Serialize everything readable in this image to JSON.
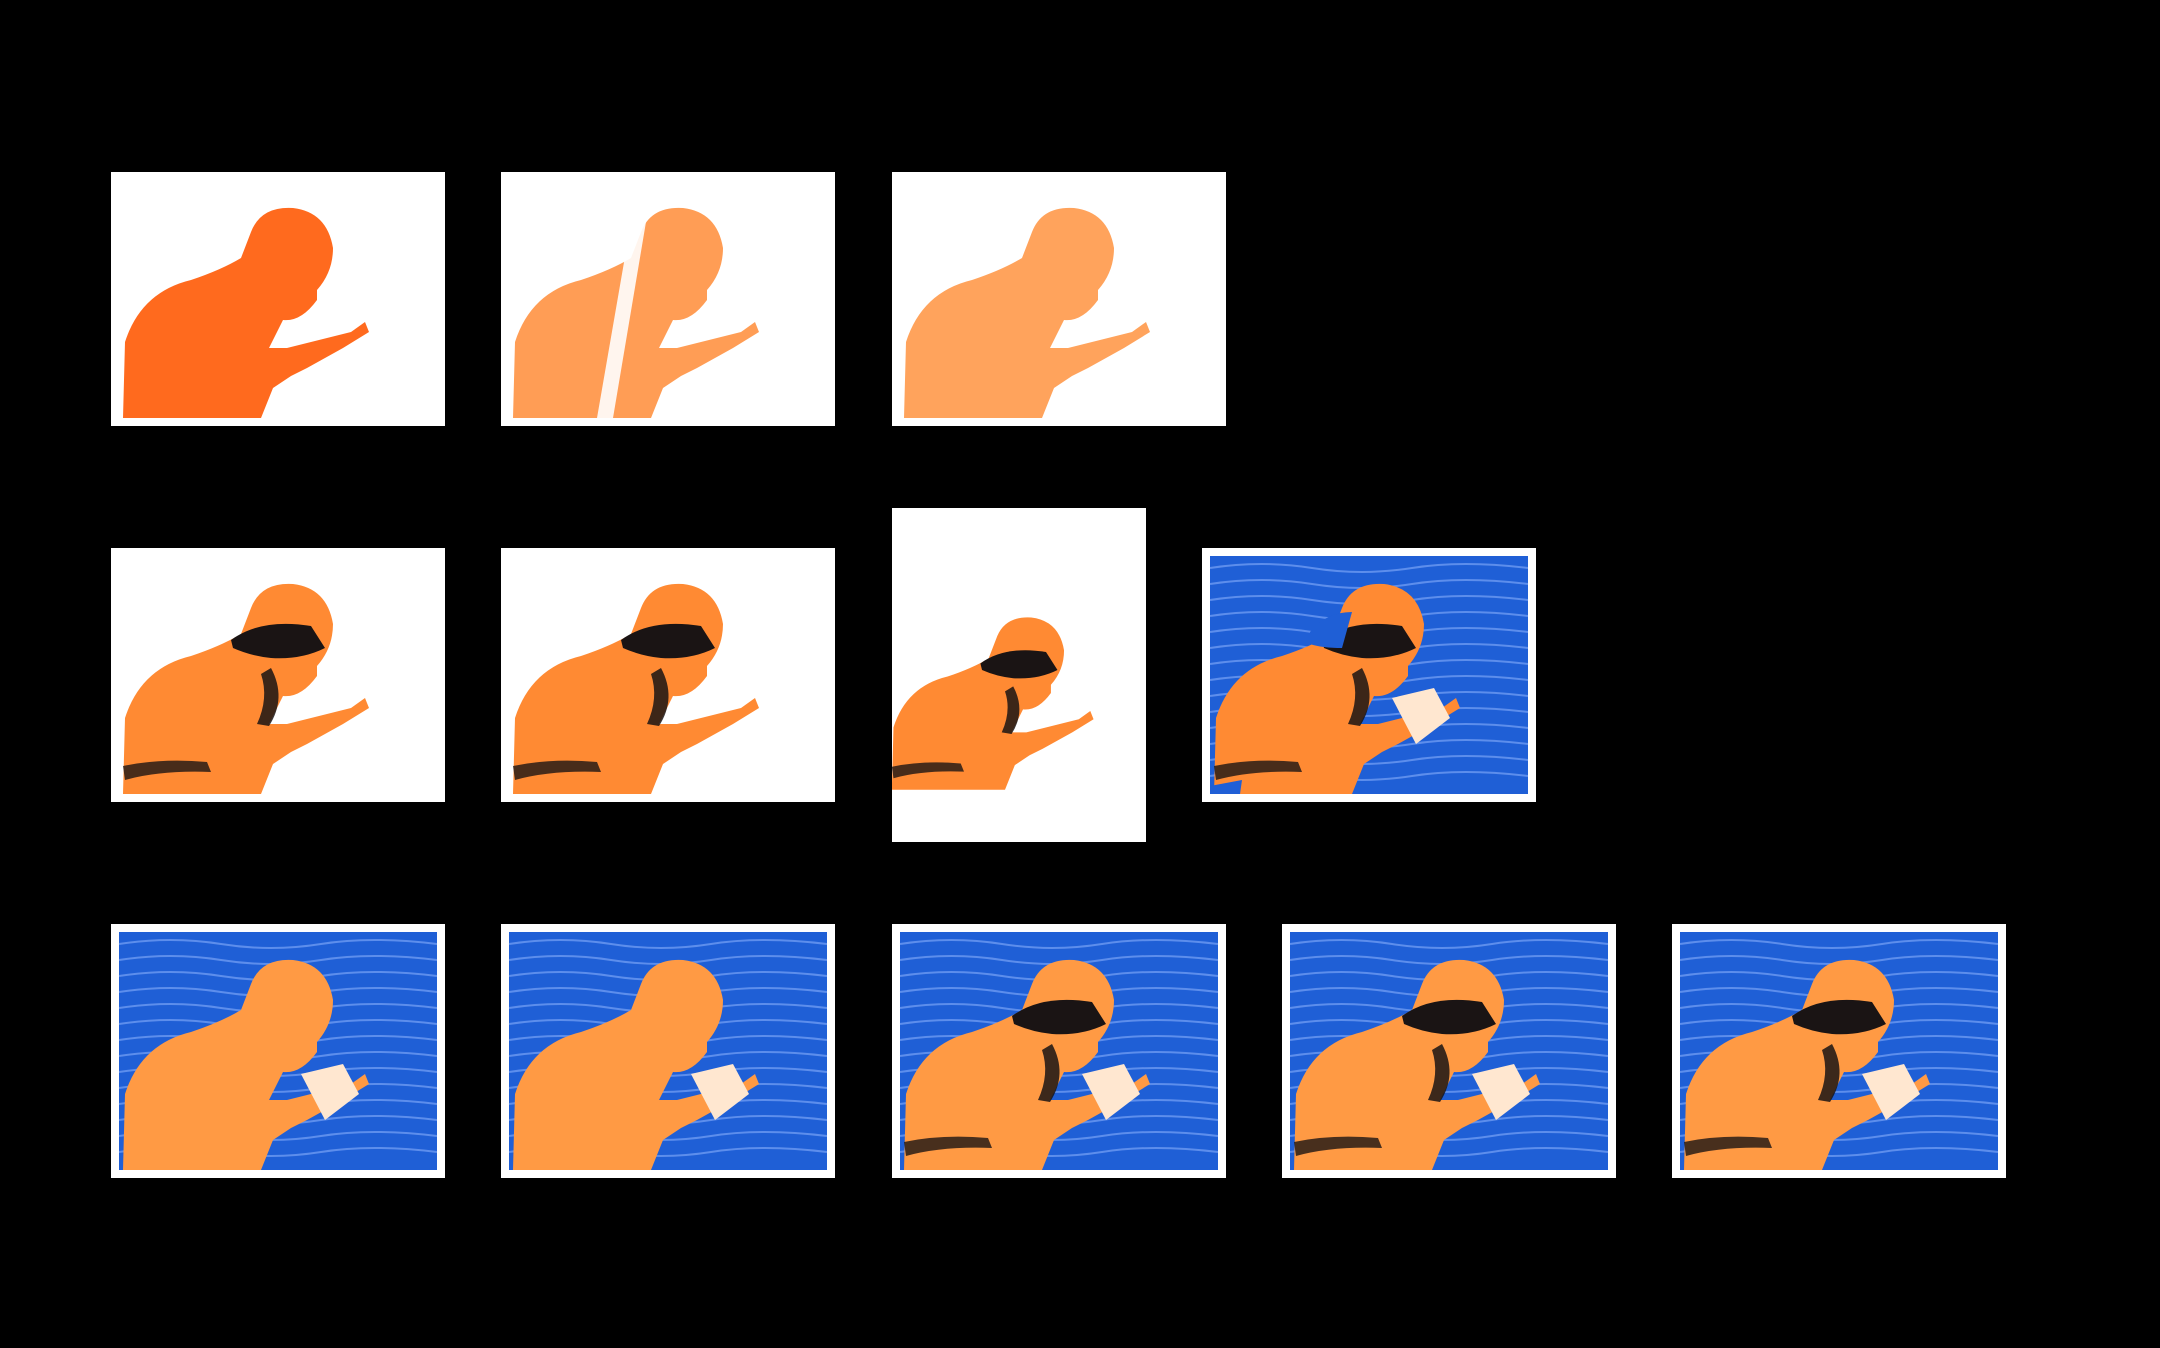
{
  "gallery": {
    "background": "#000000",
    "rows": [
      {
        "name": "orange-only",
        "prints": [
          {
            "variant": "orange-bright",
            "ink": "#ff6a1e",
            "layers": [
              "orange"
            ]
          },
          {
            "variant": "orange-light-streak",
            "ink": "#ff9d55",
            "layers": [
              "orange"
            ]
          },
          {
            "variant": "orange-light",
            "ink": "#ffa35c",
            "layers": [
              "orange"
            ]
          }
        ]
      },
      {
        "name": "orange-black",
        "prints": [
          {
            "variant": "orange-black",
            "ink": "#ff8a33",
            "layers": [
              "orange",
              "black"
            ]
          },
          {
            "variant": "orange-black",
            "ink": "#ff8a33",
            "layers": [
              "orange",
              "black"
            ]
          },
          {
            "variant": "orange-black-portrait",
            "ink": "#ff8a33",
            "layers": [
              "orange",
              "black"
            ]
          },
          {
            "variant": "orange-black-blue-offset",
            "ink": "#ff8a33",
            "layers": [
              "orange",
              "black",
              "blue"
            ]
          }
        ]
      },
      {
        "name": "blue-orange",
        "prints": [
          {
            "variant": "blue-orange",
            "ink": "#ff9a44",
            "layers": [
              "blue",
              "orange"
            ]
          },
          {
            "variant": "blue-orange",
            "ink": "#ff9a44",
            "layers": [
              "blue",
              "orange"
            ]
          },
          {
            "variant": "blue-orange-black",
            "ink": "#ff9a44",
            "layers": [
              "blue",
              "orange",
              "black"
            ]
          },
          {
            "variant": "blue-orange-black",
            "ink": "#ff9a44",
            "layers": [
              "blue",
              "orange",
              "black"
            ]
          },
          {
            "variant": "blue-orange-black",
            "ink": "#ff9a44",
            "layers": [
              "blue",
              "orange",
              "black"
            ]
          }
        ]
      }
    ],
    "colors": {
      "blue": "#1f5fd6",
      "black": "#1a1414",
      "paper": "#ffffff"
    }
  }
}
